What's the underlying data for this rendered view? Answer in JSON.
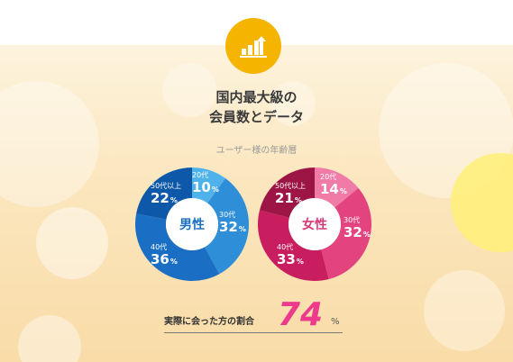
{
  "header": {
    "icon": "bar-chart-up-arrow-icon",
    "title_line1": "国内最大級の",
    "title_line2": "会員数とデータ",
    "subtitle": "ユーザー様の年齢層"
  },
  "chart_data": [
    {
      "type": "pie",
      "center_label": "男性",
      "categories": [
        "20代",
        "30代",
        "40代",
        "50代以上"
      ],
      "values": [
        10,
        32,
        36,
        22
      ],
      "unit": "%",
      "colors": [
        "#4fb2ea",
        "#2e8fd8",
        "#1a6fc4",
        "#0d58a8"
      ]
    },
    {
      "type": "pie",
      "center_label": "女性",
      "categories": [
        "20代",
        "30代",
        "40代",
        "50代以上"
      ],
      "values": [
        14,
        32,
        33,
        21
      ],
      "unit": "%",
      "colors": [
        "#f07ba6",
        "#e3447f",
        "#c81e5f",
        "#9c1545"
      ]
    }
  ],
  "footer": {
    "label": "実際に会った方の割合",
    "value": "74",
    "unit": "%"
  },
  "colors": {
    "icon_bg": "#f5b400",
    "accent_pink": "#ee3a8c"
  }
}
